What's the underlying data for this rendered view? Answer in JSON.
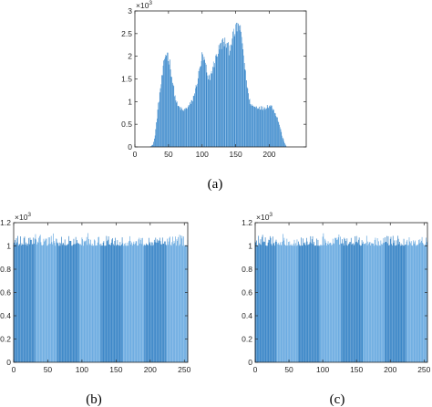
{
  "chart_data": [
    {
      "id": "a",
      "type": "bar",
      "caption": "(a)",
      "multiplier": "×10",
      "multiplier_exp": "3",
      "xlim": [
        0,
        255
      ],
      "ylim": [
        0,
        3
      ],
      "xticks": [
        0,
        50,
        100,
        150,
        200
      ],
      "yticks": [
        0,
        0.5,
        1,
        1.5,
        2,
        2.5,
        3
      ],
      "ytick_labels": [
        "0",
        "0.5",
        "1",
        "1.5",
        "2",
        "2.5",
        "3"
      ],
      "grid": false,
      "bar_color": "#2f7fc4",
      "band_color": "#62a6df",
      "profile_x": [
        0,
        22,
        27,
        30,
        34,
        38,
        42,
        45,
        48,
        52,
        56,
        60,
        64,
        68,
        72,
        76,
        80,
        85,
        90,
        95,
        100,
        105,
        108,
        112,
        116,
        120,
        125,
        130,
        135,
        140,
        144,
        148,
        152,
        155,
        160,
        165,
        170,
        175,
        180,
        185,
        190,
        195,
        200,
        205,
        210,
        215,
        220,
        224,
        226,
        255
      ],
      "profile_y": [
        0,
        0,
        0.05,
        0.25,
        0.8,
        1.3,
        1.7,
        2.0,
        2.1,
        1.85,
        1.45,
        1.1,
        0.9,
        0.85,
        0.8,
        0.84,
        0.9,
        1.0,
        1.25,
        1.6,
        2.0,
        1.85,
        1.5,
        1.55,
        1.75,
        1.95,
        2.15,
        2.3,
        2.3,
        2.15,
        2.35,
        2.5,
        2.65,
        2.7,
        2.3,
        1.6,
        1.05,
        0.9,
        0.88,
        0.88,
        0.85,
        0.88,
        0.92,
        0.88,
        0.72,
        0.5,
        0.2,
        0.05,
        0,
        0
      ]
    },
    {
      "id": "b",
      "type": "bar",
      "caption": "(b)",
      "multiplier": "×10",
      "multiplier_exp": "3",
      "xlim": [
        0,
        255
      ],
      "ylim": [
        0,
        1.2
      ],
      "xticks": [
        0,
        50,
        100,
        150,
        200,
        250
      ],
      "yticks": [
        0,
        0.2,
        0.4,
        0.6,
        0.8,
        1,
        1.2
      ],
      "ytick_labels": [
        "0",
        "0.2",
        "0.4",
        "0.6",
        "0.8",
        "1",
        "1.2"
      ],
      "grid": false,
      "bar_color": "#2f7fc4",
      "band_color": "#62a6df",
      "mean_value": 1.02,
      "value_range": [
        0.95,
        1.11
      ]
    },
    {
      "id": "c",
      "type": "bar",
      "caption": "(c)",
      "multiplier": "×10",
      "multiplier_exp": "3",
      "xlim": [
        0,
        255
      ],
      "ylim": [
        0,
        1.2
      ],
      "xticks": [
        0,
        50,
        100,
        150,
        200,
        250
      ],
      "yticks": [
        0,
        0.2,
        0.4,
        0.6,
        0.8,
        1,
        1.2
      ],
      "ytick_labels": [
        "0",
        "0.2",
        "0.4",
        "0.6",
        "0.8",
        "1",
        "1.2"
      ],
      "grid": false,
      "bar_color": "#2f7fc4",
      "band_color": "#62a6df",
      "mean_value": 1.02,
      "value_range": [
        0.95,
        1.11
      ]
    }
  ]
}
